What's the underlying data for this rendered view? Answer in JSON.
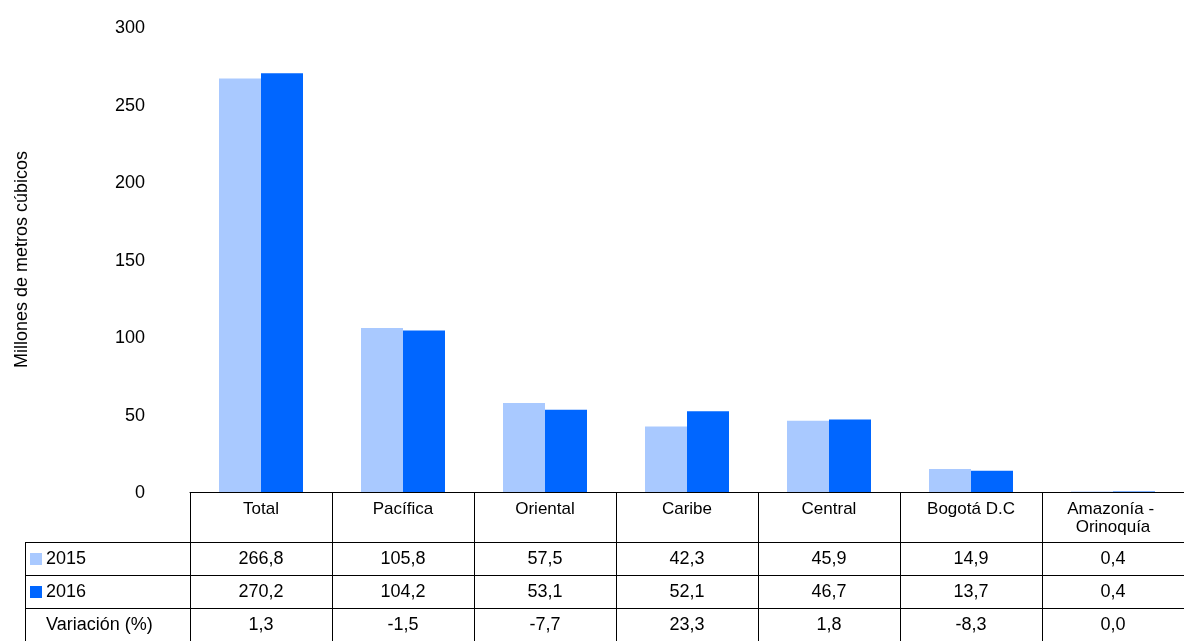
{
  "chart_data": {
    "type": "bar",
    "ylabel": "Millones de metros cúbicos",
    "categories": [
      "Total",
      "Pacífica",
      "Oriental",
      "Caribe",
      "Central",
      "Bogotá D.C",
      "Amazonía - Orinoquía"
    ],
    "series": [
      {
        "name": "2015",
        "color": "#a9c9ff",
        "values": [
          266.8,
          105.8,
          57.5,
          42.3,
          45.9,
          14.9,
          0.4
        ],
        "value_labels": [
          "266,8",
          "105,8",
          "57,5",
          "42,3",
          "45,9",
          "14,9",
          "0,4"
        ]
      },
      {
        "name": "2016",
        "color": "#0066ff",
        "values": [
          270.2,
          104.2,
          53.1,
          52.1,
          46.7,
          13.7,
          0.4
        ],
        "value_labels": [
          "270,2",
          "104,2",
          "53,1",
          "52,1",
          "46,7",
          "13,7",
          "0,4"
        ]
      }
    ],
    "annotations": [
      "Variación (%)",
      "1,3",
      "-1,5",
      "-7,7",
      "23,3",
      "1,8",
      "-8,3",
      "0,0"
    ],
    "ylim": [
      0,
      300
    ],
    "yticks": [
      0,
      50,
      100,
      150,
      200,
      250,
      300
    ],
    "grid": false,
    "legend": "bottom left"
  }
}
